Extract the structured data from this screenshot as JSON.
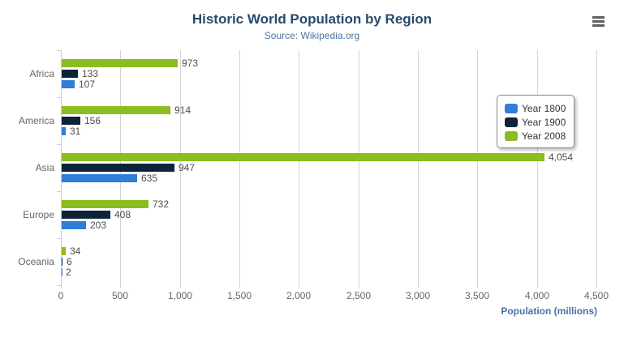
{
  "toolbar": {
    "export_menu_icon": "hamburger-menu-icon"
  },
  "colors": {
    "title": "#274b6d",
    "subtitle": "#4d759e",
    "axis_title": "#4572a7",
    "grid": "#d3d3d3",
    "axis_line": "#c0d0e0",
    "tick_label": "#666666",
    "value_label": "#4d4d4d"
  },
  "chart_data": {
    "type": "bar",
    "orientation": "horizontal",
    "title": "Historic World Population by Region",
    "subtitle": "Source: Wikipedia.org",
    "categories": [
      "Africa",
      "America",
      "Asia",
      "Europe",
      "Oceania"
    ],
    "series": [
      {
        "name": "Year 1800",
        "color": "#2f7ed8",
        "values": [
          107,
          31,
          635,
          203,
          2
        ]
      },
      {
        "name": "Year 1900",
        "color": "#0d233a",
        "values": [
          133,
          156,
          947,
          408,
          6
        ]
      },
      {
        "name": "Year 2008",
        "color": "#8bbc21",
        "values": [
          973,
          914,
          4054,
          732,
          34
        ]
      }
    ],
    "bar_display_order_top_to_bottom": [
      "Year 2008",
      "Year 1900",
      "Year 1800"
    ],
    "xlabel": "Population (millions)",
    "xlim": [
      0,
      4500
    ],
    "tick_interval": 500,
    "tick_labels": [
      "0",
      "500",
      "1,000",
      "1,500",
      "2,000",
      "2,500",
      "3,000",
      "3,500",
      "4,000",
      "4,500"
    ],
    "data_labels": true,
    "grid": true,
    "legend_position": "right-middle"
  }
}
